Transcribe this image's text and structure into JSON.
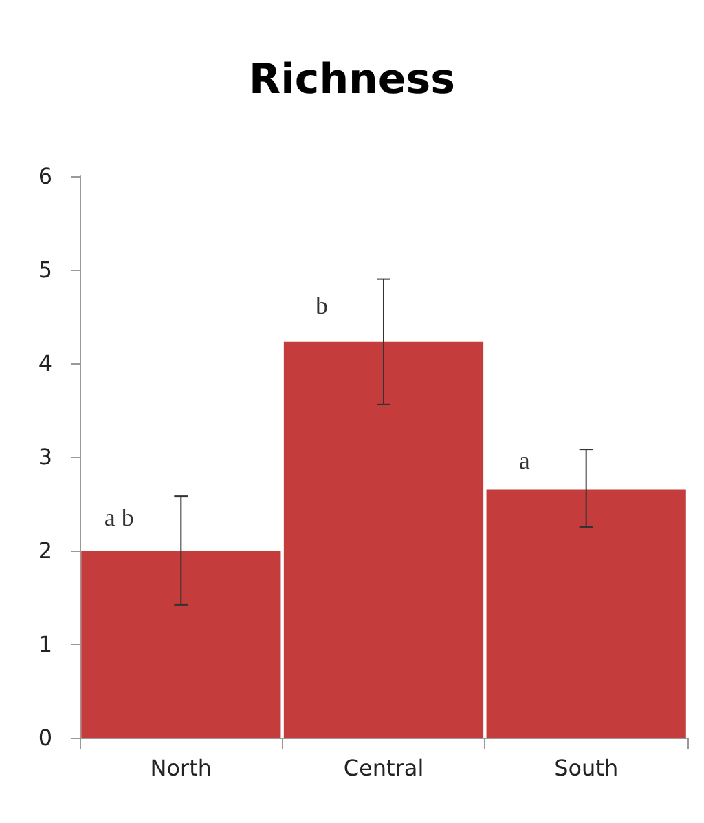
{
  "chart_data": {
    "type": "bar",
    "title": "Richness",
    "categories": [
      "North",
      "Central",
      "South"
    ],
    "values": [
      2.0,
      4.23,
      2.65
    ],
    "errors": [
      [
        1.42,
        2.58
      ],
      [
        3.56,
        4.9
      ],
      [
        2.25,
        3.08
      ]
    ],
    "color": "#c43c3c",
    "ylim": [
      0,
      6
    ],
    "yticks": [
      0,
      1,
      2,
      3,
      4,
      5,
      6
    ],
    "grid": false,
    "annotations": [
      {
        "text": "a b",
        "x": "North",
        "y": 2.35
      },
      {
        "text": "b",
        "x": "Central",
        "y": 4.62
      },
      {
        "text": "a",
        "x": "South",
        "y": 2.96
      }
    ]
  }
}
